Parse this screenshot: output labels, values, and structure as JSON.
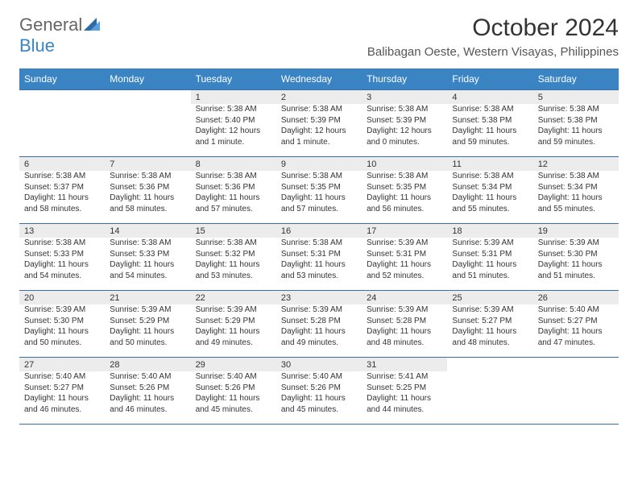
{
  "logo": {
    "part1": "General",
    "part2": "Blue"
  },
  "colors": {
    "header_row_bg": "#3a84c4",
    "header_row_text": "#ffffff",
    "daynum_bg": "#ececec",
    "week_border": "#3a6ea5",
    "logo_blue": "#3a84c4"
  },
  "title": "October 2024",
  "location": "Balibagan Oeste, Western Visayas, Philippines",
  "day_names": [
    "Sunday",
    "Monday",
    "Tuesday",
    "Wednesday",
    "Thursday",
    "Friday",
    "Saturday"
  ],
  "weeks": [
    [
      null,
      null,
      {
        "n": "1",
        "sr": "Sunrise: 5:38 AM",
        "ss": "Sunset: 5:40 PM",
        "dl": "Daylight: 12 hours and 1 minute."
      },
      {
        "n": "2",
        "sr": "Sunrise: 5:38 AM",
        "ss": "Sunset: 5:39 PM",
        "dl": "Daylight: 12 hours and 1 minute."
      },
      {
        "n": "3",
        "sr": "Sunrise: 5:38 AM",
        "ss": "Sunset: 5:39 PM",
        "dl": "Daylight: 12 hours and 0 minutes."
      },
      {
        "n": "4",
        "sr": "Sunrise: 5:38 AM",
        "ss": "Sunset: 5:38 PM",
        "dl": "Daylight: 11 hours and 59 minutes."
      },
      {
        "n": "5",
        "sr": "Sunrise: 5:38 AM",
        "ss": "Sunset: 5:38 PM",
        "dl": "Daylight: 11 hours and 59 minutes."
      }
    ],
    [
      {
        "n": "6",
        "sr": "Sunrise: 5:38 AM",
        "ss": "Sunset: 5:37 PM",
        "dl": "Daylight: 11 hours and 58 minutes."
      },
      {
        "n": "7",
        "sr": "Sunrise: 5:38 AM",
        "ss": "Sunset: 5:36 PM",
        "dl": "Daylight: 11 hours and 58 minutes."
      },
      {
        "n": "8",
        "sr": "Sunrise: 5:38 AM",
        "ss": "Sunset: 5:36 PM",
        "dl": "Daylight: 11 hours and 57 minutes."
      },
      {
        "n": "9",
        "sr": "Sunrise: 5:38 AM",
        "ss": "Sunset: 5:35 PM",
        "dl": "Daylight: 11 hours and 57 minutes."
      },
      {
        "n": "10",
        "sr": "Sunrise: 5:38 AM",
        "ss": "Sunset: 5:35 PM",
        "dl": "Daylight: 11 hours and 56 minutes."
      },
      {
        "n": "11",
        "sr": "Sunrise: 5:38 AM",
        "ss": "Sunset: 5:34 PM",
        "dl": "Daylight: 11 hours and 55 minutes."
      },
      {
        "n": "12",
        "sr": "Sunrise: 5:38 AM",
        "ss": "Sunset: 5:34 PM",
        "dl": "Daylight: 11 hours and 55 minutes."
      }
    ],
    [
      {
        "n": "13",
        "sr": "Sunrise: 5:38 AM",
        "ss": "Sunset: 5:33 PM",
        "dl": "Daylight: 11 hours and 54 minutes."
      },
      {
        "n": "14",
        "sr": "Sunrise: 5:38 AM",
        "ss": "Sunset: 5:33 PM",
        "dl": "Daylight: 11 hours and 54 minutes."
      },
      {
        "n": "15",
        "sr": "Sunrise: 5:38 AM",
        "ss": "Sunset: 5:32 PM",
        "dl": "Daylight: 11 hours and 53 minutes."
      },
      {
        "n": "16",
        "sr": "Sunrise: 5:38 AM",
        "ss": "Sunset: 5:31 PM",
        "dl": "Daylight: 11 hours and 53 minutes."
      },
      {
        "n": "17",
        "sr": "Sunrise: 5:39 AM",
        "ss": "Sunset: 5:31 PM",
        "dl": "Daylight: 11 hours and 52 minutes."
      },
      {
        "n": "18",
        "sr": "Sunrise: 5:39 AM",
        "ss": "Sunset: 5:31 PM",
        "dl": "Daylight: 11 hours and 51 minutes."
      },
      {
        "n": "19",
        "sr": "Sunrise: 5:39 AM",
        "ss": "Sunset: 5:30 PM",
        "dl": "Daylight: 11 hours and 51 minutes."
      }
    ],
    [
      {
        "n": "20",
        "sr": "Sunrise: 5:39 AM",
        "ss": "Sunset: 5:30 PM",
        "dl": "Daylight: 11 hours and 50 minutes."
      },
      {
        "n": "21",
        "sr": "Sunrise: 5:39 AM",
        "ss": "Sunset: 5:29 PM",
        "dl": "Daylight: 11 hours and 50 minutes."
      },
      {
        "n": "22",
        "sr": "Sunrise: 5:39 AM",
        "ss": "Sunset: 5:29 PM",
        "dl": "Daylight: 11 hours and 49 minutes."
      },
      {
        "n": "23",
        "sr": "Sunrise: 5:39 AM",
        "ss": "Sunset: 5:28 PM",
        "dl": "Daylight: 11 hours and 49 minutes."
      },
      {
        "n": "24",
        "sr": "Sunrise: 5:39 AM",
        "ss": "Sunset: 5:28 PM",
        "dl": "Daylight: 11 hours and 48 minutes."
      },
      {
        "n": "25",
        "sr": "Sunrise: 5:39 AM",
        "ss": "Sunset: 5:27 PM",
        "dl": "Daylight: 11 hours and 48 minutes."
      },
      {
        "n": "26",
        "sr": "Sunrise: 5:40 AM",
        "ss": "Sunset: 5:27 PM",
        "dl": "Daylight: 11 hours and 47 minutes."
      }
    ],
    [
      {
        "n": "27",
        "sr": "Sunrise: 5:40 AM",
        "ss": "Sunset: 5:27 PM",
        "dl": "Daylight: 11 hours and 46 minutes."
      },
      {
        "n": "28",
        "sr": "Sunrise: 5:40 AM",
        "ss": "Sunset: 5:26 PM",
        "dl": "Daylight: 11 hours and 46 minutes."
      },
      {
        "n": "29",
        "sr": "Sunrise: 5:40 AM",
        "ss": "Sunset: 5:26 PM",
        "dl": "Daylight: 11 hours and 45 minutes."
      },
      {
        "n": "30",
        "sr": "Sunrise: 5:40 AM",
        "ss": "Sunset: 5:26 PM",
        "dl": "Daylight: 11 hours and 45 minutes."
      },
      {
        "n": "31",
        "sr": "Sunrise: 5:41 AM",
        "ss": "Sunset: 5:25 PM",
        "dl": "Daylight: 11 hours and 44 minutes."
      },
      null,
      null
    ]
  ]
}
